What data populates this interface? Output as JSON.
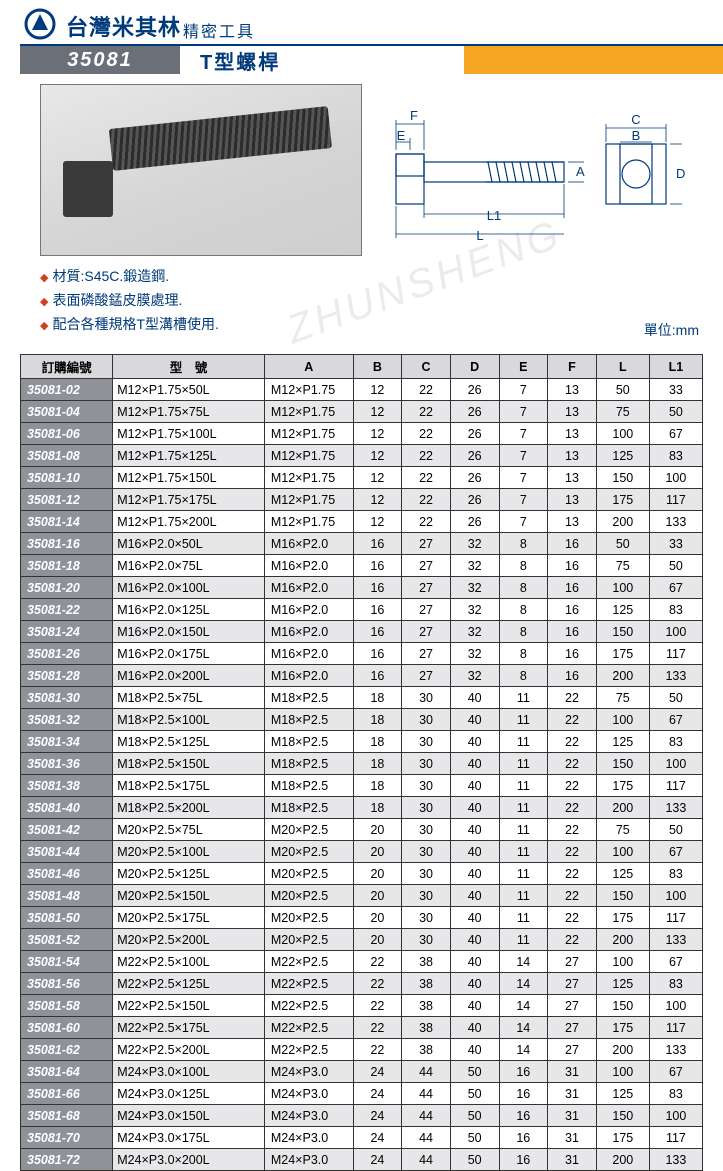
{
  "header": {
    "company_main": "台灣米其林",
    "company_sub": "精密工具",
    "product_code": "35081",
    "product_title": "T型螺桿",
    "colors": {
      "brand_blue": "#003a7a",
      "accent_orange": "#f5a623",
      "code_bg": "#6b6f78",
      "row_code_bg": "#8f9299",
      "row_alt_bg": "#e7e7ea"
    }
  },
  "bullets": {
    "b1": "材質:S45C.鍛造鋼.",
    "b2": "表面磷酸錳皮膜處理.",
    "b3": "配合各種規格T型溝槽使用."
  },
  "unit_label": "單位:mm",
  "watermark": "ZHUNSHENG",
  "drawing_labels": {
    "F": "F",
    "E": "E",
    "A": "A",
    "L1": "L1",
    "L": "L",
    "C": "C",
    "B": "B",
    "D": "D"
  },
  "table": {
    "headers": {
      "code": "訂購編號",
      "model": "型　號",
      "A": "A",
      "B": "B",
      "C": "C",
      "D": "D",
      "E": "E",
      "F": "F",
      "L": "L",
      "L1": "L1"
    },
    "rows": [
      {
        "code": "35081-02",
        "model": "M12×P1.75×50L",
        "A": "M12×P1.75",
        "B": "12",
        "C": "22",
        "D": "26",
        "E": "7",
        "F": "13",
        "L": "50",
        "L1": "33"
      },
      {
        "code": "35081-04",
        "model": "M12×P1.75×75L",
        "A": "M12×P1.75",
        "B": "12",
        "C": "22",
        "D": "26",
        "E": "7",
        "F": "13",
        "L": "75",
        "L1": "50"
      },
      {
        "code": "35081-06",
        "model": "M12×P1.75×100L",
        "A": "M12×P1.75",
        "B": "12",
        "C": "22",
        "D": "26",
        "E": "7",
        "F": "13",
        "L": "100",
        "L1": "67"
      },
      {
        "code": "35081-08",
        "model": "M12×P1.75×125L",
        "A": "M12×P1.75",
        "B": "12",
        "C": "22",
        "D": "26",
        "E": "7",
        "F": "13",
        "L": "125",
        "L1": "83"
      },
      {
        "code": "35081-10",
        "model": "M12×P1.75×150L",
        "A": "M12×P1.75",
        "B": "12",
        "C": "22",
        "D": "26",
        "E": "7",
        "F": "13",
        "L": "150",
        "L1": "100"
      },
      {
        "code": "35081-12",
        "model": "M12×P1.75×175L",
        "A": "M12×P1.75",
        "B": "12",
        "C": "22",
        "D": "26",
        "E": "7",
        "F": "13",
        "L": "175",
        "L1": "117"
      },
      {
        "code": "35081-14",
        "model": "M12×P1.75×200L",
        "A": "M12×P1.75",
        "B": "12",
        "C": "22",
        "D": "26",
        "E": "7",
        "F": "13",
        "L": "200",
        "L1": "133"
      },
      {
        "code": "35081-16",
        "model": "M16×P2.0×50L",
        "A": "M16×P2.0",
        "B": "16",
        "C": "27",
        "D": "32",
        "E": "8",
        "F": "16",
        "L": "50",
        "L1": "33"
      },
      {
        "code": "35081-18",
        "model": "M16×P2.0×75L",
        "A": "M16×P2.0",
        "B": "16",
        "C": "27",
        "D": "32",
        "E": "8",
        "F": "16",
        "L": "75",
        "L1": "50"
      },
      {
        "code": "35081-20",
        "model": "M16×P2.0×100L",
        "A": "M16×P2.0",
        "B": "16",
        "C": "27",
        "D": "32",
        "E": "8",
        "F": "16",
        "L": "100",
        "L1": "67"
      },
      {
        "code": "35081-22",
        "model": "M16×P2.0×125L",
        "A": "M16×P2.0",
        "B": "16",
        "C": "27",
        "D": "32",
        "E": "8",
        "F": "16",
        "L": "125",
        "L1": "83"
      },
      {
        "code": "35081-24",
        "model": "M16×P2.0×150L",
        "A": "M16×P2.0",
        "B": "16",
        "C": "27",
        "D": "32",
        "E": "8",
        "F": "16",
        "L": "150",
        "L1": "100"
      },
      {
        "code": "35081-26",
        "model": "M16×P2.0×175L",
        "A": "M16×P2.0",
        "B": "16",
        "C": "27",
        "D": "32",
        "E": "8",
        "F": "16",
        "L": "175",
        "L1": "117"
      },
      {
        "code": "35081-28",
        "model": "M16×P2.0×200L",
        "A": "M16×P2.0",
        "B": "16",
        "C": "27",
        "D": "32",
        "E": "8",
        "F": "16",
        "L": "200",
        "L1": "133"
      },
      {
        "code": "35081-30",
        "model": "M18×P2.5×75L",
        "A": "M18×P2.5",
        "B": "18",
        "C": "30",
        "D": "40",
        "E": "11",
        "F": "22",
        "L": "75",
        "L1": "50"
      },
      {
        "code": "35081-32",
        "model": "M18×P2.5×100L",
        "A": "M18×P2.5",
        "B": "18",
        "C": "30",
        "D": "40",
        "E": "11",
        "F": "22",
        "L": "100",
        "L1": "67"
      },
      {
        "code": "35081-34",
        "model": "M18×P2.5×125L",
        "A": "M18×P2.5",
        "B": "18",
        "C": "30",
        "D": "40",
        "E": "11",
        "F": "22",
        "L": "125",
        "L1": "83"
      },
      {
        "code": "35081-36",
        "model": "M18×P2.5×150L",
        "A": "M18×P2.5",
        "B": "18",
        "C": "30",
        "D": "40",
        "E": "11",
        "F": "22",
        "L": "150",
        "L1": "100"
      },
      {
        "code": "35081-38",
        "model": "M18×P2.5×175L",
        "A": "M18×P2.5",
        "B": "18",
        "C": "30",
        "D": "40",
        "E": "11",
        "F": "22",
        "L": "175",
        "L1": "117"
      },
      {
        "code": "35081-40",
        "model": "M18×P2.5×200L",
        "A": "M18×P2.5",
        "B": "18",
        "C": "30",
        "D": "40",
        "E": "11",
        "F": "22",
        "L": "200",
        "L1": "133"
      },
      {
        "code": "35081-42",
        "model": "M20×P2.5×75L",
        "A": "M20×P2.5",
        "B": "20",
        "C": "30",
        "D": "40",
        "E": "11",
        "F": "22",
        "L": "75",
        "L1": "50"
      },
      {
        "code": "35081-44",
        "model": "M20×P2.5×100L",
        "A": "M20×P2.5",
        "B": "20",
        "C": "30",
        "D": "40",
        "E": "11",
        "F": "22",
        "L": "100",
        "L1": "67"
      },
      {
        "code": "35081-46",
        "model": "M20×P2.5×125L",
        "A": "M20×P2.5",
        "B": "20",
        "C": "30",
        "D": "40",
        "E": "11",
        "F": "22",
        "L": "125",
        "L1": "83"
      },
      {
        "code": "35081-48",
        "model": "M20×P2.5×150L",
        "A": "M20×P2.5",
        "B": "20",
        "C": "30",
        "D": "40",
        "E": "11",
        "F": "22",
        "L": "150",
        "L1": "100"
      },
      {
        "code": "35081-50",
        "model": "M20×P2.5×175L",
        "A": "M20×P2.5",
        "B": "20",
        "C": "30",
        "D": "40",
        "E": "11",
        "F": "22",
        "L": "175",
        "L1": "117"
      },
      {
        "code": "35081-52",
        "model": "M20×P2.5×200L",
        "A": "M20×P2.5",
        "B": "20",
        "C": "30",
        "D": "40",
        "E": "11",
        "F": "22",
        "L": "200",
        "L1": "133"
      },
      {
        "code": "35081-54",
        "model": "M22×P2.5×100L",
        "A": "M22×P2.5",
        "B": "22",
        "C": "38",
        "D": "40",
        "E": "14",
        "F": "27",
        "L": "100",
        "L1": "67"
      },
      {
        "code": "35081-56",
        "model": "M22×P2.5×125L",
        "A": "M22×P2.5",
        "B": "22",
        "C": "38",
        "D": "40",
        "E": "14",
        "F": "27",
        "L": "125",
        "L1": "83"
      },
      {
        "code": "35081-58",
        "model": "M22×P2.5×150L",
        "A": "M22×P2.5",
        "B": "22",
        "C": "38",
        "D": "40",
        "E": "14",
        "F": "27",
        "L": "150",
        "L1": "100"
      },
      {
        "code": "35081-60",
        "model": "M22×P2.5×175L",
        "A": "M22×P2.5",
        "B": "22",
        "C": "38",
        "D": "40",
        "E": "14",
        "F": "27",
        "L": "175",
        "L1": "117"
      },
      {
        "code": "35081-62",
        "model": "M22×P2.5×200L",
        "A": "M22×P2.5",
        "B": "22",
        "C": "38",
        "D": "40",
        "E": "14",
        "F": "27",
        "L": "200",
        "L1": "133"
      },
      {
        "code": "35081-64",
        "model": "M24×P3.0×100L",
        "A": "M24×P3.0",
        "B": "24",
        "C": "44",
        "D": "50",
        "E": "16",
        "F": "31",
        "L": "100",
        "L1": "67"
      },
      {
        "code": "35081-66",
        "model": "M24×P3.0×125L",
        "A": "M24×P3.0",
        "B": "24",
        "C": "44",
        "D": "50",
        "E": "16",
        "F": "31",
        "L": "125",
        "L1": "83"
      },
      {
        "code": "35081-68",
        "model": "M24×P3.0×150L",
        "A": "M24×P3.0",
        "B": "24",
        "C": "44",
        "D": "50",
        "E": "16",
        "F": "31",
        "L": "150",
        "L1": "100"
      },
      {
        "code": "35081-70",
        "model": "M24×P3.0×175L",
        "A": "M24×P3.0",
        "B": "24",
        "C": "44",
        "D": "50",
        "E": "16",
        "F": "31",
        "L": "175",
        "L1": "117"
      },
      {
        "code": "35081-72",
        "model": "M24×P3.0×200L",
        "A": "M24×P3.0",
        "B": "24",
        "C": "44",
        "D": "50",
        "E": "16",
        "F": "31",
        "L": "200",
        "L1": "133"
      }
    ]
  }
}
